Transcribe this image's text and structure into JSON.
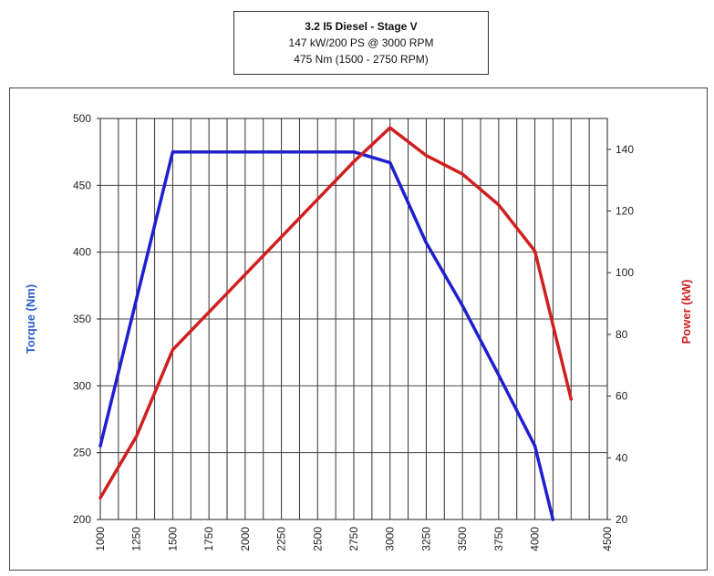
{
  "title": {
    "line1": "3.2 I5 Diesel - Stage V",
    "line2": "147 kW/200 PS @ 3000 RPM",
    "line3": "475 Nm (1500 - 2750 RPM)"
  },
  "chart_data": {
    "type": "line",
    "title": "3.2 I5 Diesel - Stage V",
    "xlabel": "",
    "ylabel": "Torque (Nm)",
    "y2label": "Power (kW)",
    "x_ticks": [
      "1000",
      "1250",
      "1500",
      "1750",
      "2000",
      "2250",
      "2500",
      "2750",
      "3000",
      "3250",
      "3500",
      "3750",
      "4000",
      "4500"
    ],
    "xlim": [
      1000,
      4500
    ],
    "ylim": [
      200,
      500
    ],
    "y_ticks": [
      200,
      250,
      300,
      350,
      400,
      450,
      500
    ],
    "y2lim": [
      20,
      150
    ],
    "y2_ticks": [
      20,
      40,
      60,
      80,
      100,
      120,
      140
    ],
    "grid": true,
    "colors": {
      "torque": "#1f1fd0",
      "power": "#d01f1f"
    },
    "series": [
      {
        "name": "Torque (Nm)",
        "axis": "left",
        "x": [
          1000,
          1500,
          2750,
          3000,
          3250,
          3500,
          3750,
          4000,
          4125
        ],
        "y": [
          255,
          475,
          475,
          467,
          407,
          360,
          308,
          255,
          200
        ]
      },
      {
        "name": "Power (kW)",
        "axis": "right",
        "x": [
          1000,
          1250,
          1500,
          2750,
          3000,
          3250,
          3500,
          3750,
          4000,
          4250
        ],
        "y": [
          27,
          47,
          75,
          136,
          147,
          138,
          132,
          122,
          107,
          59
        ]
      }
    ]
  }
}
